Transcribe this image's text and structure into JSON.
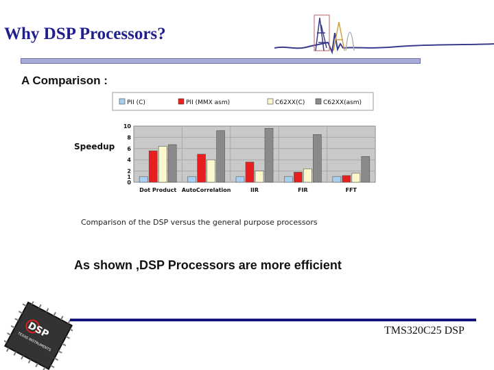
{
  "slide": {
    "title": "Why DSP Processors?",
    "subtitle": "A Comparison :",
    "conclusion": "As shown ,DSP Processors are more efficient",
    "footer": "TMS320C25 DSP",
    "chip_logo_text": "DSP",
    "chip_subtext": "TEXAS INSTRUMENTS"
  },
  "chart_data": {
    "type": "bar",
    "title": "",
    "caption": "Comparison of the DSP versus the general purpose processors",
    "ylabel": "Speedup",
    "xlabel": "",
    "ylim": [
      0,
      10
    ],
    "yticks": [
      "0",
      "1",
      "2",
      "4",
      "6",
      "8",
      "10"
    ],
    "grid": true,
    "legend_position": "top",
    "categories": [
      "Dot Product",
      "AutoCorrelation",
      "IIR",
      "FIR",
      "FFT"
    ],
    "series": [
      {
        "name": "PII (C)",
        "color": "#a8cff0",
        "values": [
          1,
          1,
          1,
          1,
          1
        ]
      },
      {
        "name": "PII (MMX asm)",
        "color": "#e81f1f",
        "values": [
          5.6,
          5.0,
          3.6,
          1.8,
          1.2
        ]
      },
      {
        "name": "C62XX(C)",
        "color": "#fbf7cc",
        "values": [
          6.4,
          4.0,
          2.0,
          2.4,
          1.6
        ]
      },
      {
        "name": "C62XX(asm)",
        "color": "#8a8a8a",
        "values": [
          6.7,
          9.2,
          9.6,
          8.5,
          4.6
        ]
      }
    ]
  }
}
